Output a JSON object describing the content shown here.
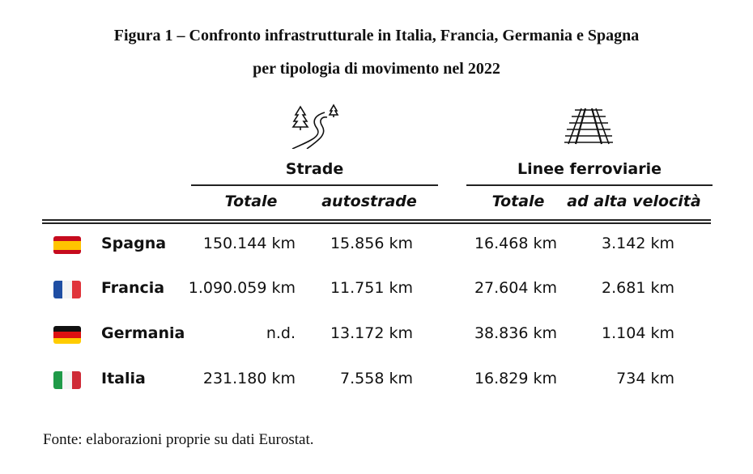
{
  "title": {
    "line1": "Figura 1 – Confronto infrastrutturale in Italia, Francia, Germania e Spagna",
    "line2": "per tipologia di movimento nel 2022"
  },
  "groups": [
    {
      "label": "Strade",
      "icon": "road-trees-icon"
    },
    {
      "label": "Linee ferroviarie",
      "icon": "railway-track-icon"
    }
  ],
  "columns": [
    "Totale",
    "autostrade",
    "Totale",
    "ad alta velocità"
  ],
  "rows": [
    {
      "country": "Spagna",
      "flag": "spain-flag-icon",
      "values": [
        "150.144 km",
        "15.856 km",
        "16.468 km",
        "3.142 km"
      ]
    },
    {
      "country": "Francia",
      "flag": "france-flag-icon",
      "values": [
        "1.090.059 km",
        "11.751 km",
        "27.604 km",
        "2.681 km"
      ]
    },
    {
      "country": "Germania",
      "flag": "germany-flag-icon",
      "values": [
        "n.d.",
        "13.172 km",
        "38.836 km",
        "1.104 km"
      ]
    },
    {
      "country": "Italia",
      "flag": "italy-flag-icon",
      "values": [
        "231.180 km",
        "7.558 km",
        "16.829 km",
        "734 km"
      ]
    }
  ],
  "source": "Fonte: elaborazioni proprie su dati Eurostat."
}
